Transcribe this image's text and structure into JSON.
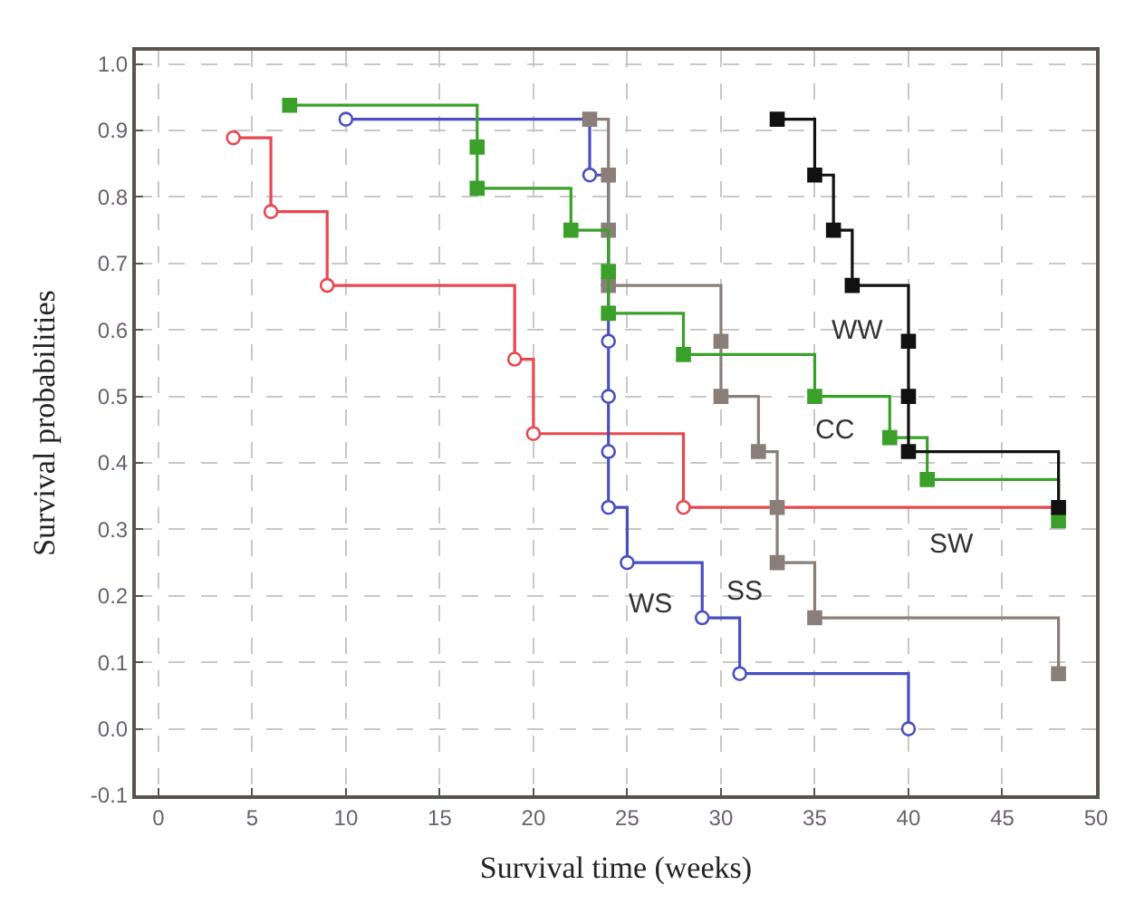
{
  "chart_data": {
    "type": "step",
    "xlabel": "Survival time (weeks)",
    "ylabel": "Survival probabilities",
    "xlim": [
      -1.2,
      50
    ],
    "xticks": [
      0,
      5,
      10,
      15,
      20,
      25,
      30,
      35,
      40,
      45,
      50
    ],
    "ylim": [
      -0.1,
      1.02
    ],
    "yticks": [
      -0.1,
      {
        "value": 0,
        "label": "0.0"
      },
      0.1,
      0.2,
      0.3,
      0.4,
      0.5,
      0.6,
      0.7,
      0.8,
      0.9,
      {
        "value": 1,
        "label": "1.0"
      }
    ],
    "grid": true,
    "legend": false,
    "line_style": "solid",
    "series": [
      {
        "name": "SW",
        "color": "#e8474f",
        "marker": "circle",
        "x": [
          4,
          6,
          9,
          19,
          20,
          28,
          48
        ],
        "values": [
          0.889,
          0.778,
          0.667,
          0.556,
          0.444,
          0.333,
          0.333
        ]
      },
      {
        "name": "WS",
        "color": "#4a4fc0",
        "marker": "circle",
        "x": [
          10,
          23,
          24,
          24,
          24,
          24,
          24,
          24,
          25,
          29,
          31,
          40
        ],
        "values": [
          0.917,
          0.833,
          0.75,
          0.667,
          0.583,
          0.5,
          0.417,
          0.333,
          0.25,
          0.167,
          0.083,
          0.0
        ]
      },
      {
        "name": "SS",
        "color": "#8a7f78",
        "marker": "square",
        "x": [
          23,
          24,
          24,
          24,
          30,
          30,
          32,
          33,
          33,
          35,
          48
        ],
        "values": [
          0.917,
          0.833,
          0.75,
          0.667,
          0.583,
          0.5,
          0.417,
          0.333,
          0.25,
          0.167,
          0.083
        ]
      },
      {
        "name": "CC",
        "color": "#3aa02a",
        "marker": "square",
        "x": [
          7,
          17,
          17,
          22,
          24,
          24,
          28,
          35,
          39,
          41,
          48
        ],
        "values": [
          0.938,
          0.875,
          0.813,
          0.75,
          0.688,
          0.625,
          0.563,
          0.5,
          0.438,
          0.375,
          0.313
        ]
      },
      {
        "name": "WW",
        "color": "#111111",
        "marker": "square",
        "x": [
          33,
          35,
          36,
          37,
          40,
          40,
          40,
          48
        ],
        "values": [
          0.917,
          0.833,
          0.75,
          0.667,
          0.583,
          0.5,
          0.417,
          0.333
        ]
      }
    ]
  }
}
